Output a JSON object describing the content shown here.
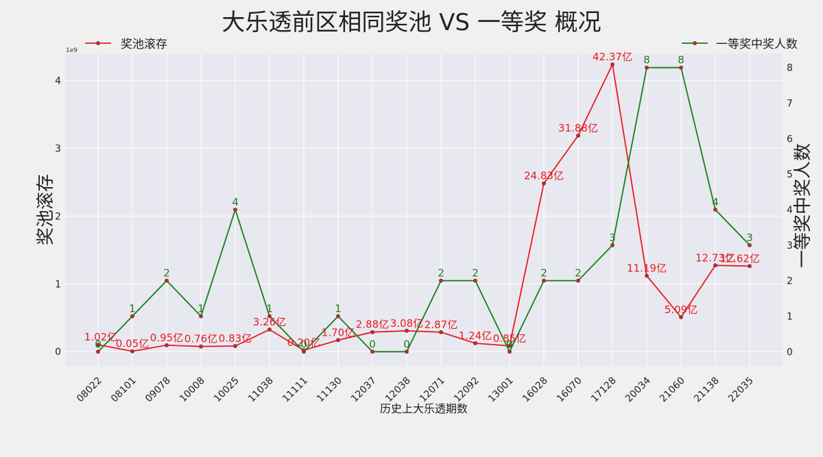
{
  "chart_data": {
    "type": "line",
    "title": "大乐透前区相同奖池 VS 一等奖 概况",
    "xlabel": "历史上大乐透期数",
    "ylabel_left": "奖池滚存",
    "ylabel_right": "一等奖中奖人数",
    "left_axis_offset_label": "1e9",
    "categories": [
      "08022",
      "08101",
      "09078",
      "10008",
      "10025",
      "11038",
      "11111",
      "11130",
      "12037",
      "12038",
      "12071",
      "12092",
      "13001",
      "16028",
      "16070",
      "17128",
      "20034",
      "21060",
      "21138",
      "22035"
    ],
    "y_left_ticks": [
      "0",
      "1",
      "2",
      "3",
      "4"
    ],
    "y_right_ticks": [
      "0",
      "1",
      "2",
      "3",
      "4",
      "5",
      "6",
      "7",
      "8"
    ],
    "ylim_left": [
      -0.21,
      4.4
    ],
    "ylim_right": [
      -0.4,
      8.4
    ],
    "grid": true,
    "legend_placement": "top-left and top-right",
    "series": [
      {
        "name": "奖池滚存",
        "axis": "left",
        "color": "#e8191f",
        "values": [
          0.102,
          0.005,
          0.095,
          0.076,
          0.083,
          0.326,
          0.02,
          0.17,
          0.288,
          0.308,
          0.287,
          0.124,
          0.085,
          2.483,
          3.188,
          4.237,
          1.119,
          0.509,
          1.273,
          1.262
        ],
        "labels": [
          "1.02亿",
          "0.05亿",
          "0.95亿",
          "0.76亿",
          "0.83亿",
          "3.26亿",
          "0.20亿",
          "1.70亿",
          "2.88亿",
          "3.08亿",
          "2.87亿",
          "1.24亿",
          "0.85亿",
          "24.83亿",
          "31.88亿",
          "42.37亿",
          "11.19亿",
          "5.09亿",
          "12.73亿",
          "12.62亿"
        ]
      },
      {
        "name": "一等奖中奖人数",
        "axis": "right",
        "color": "#138013",
        "values": [
          0,
          1,
          2,
          1,
          4,
          1,
          0,
          1,
          0,
          0,
          2,
          2,
          0,
          2,
          2,
          3,
          8,
          8,
          4,
          3
        ],
        "labels": [
          "0",
          "1",
          "2",
          "1",
          "4",
          "1",
          "0",
          "1",
          "0",
          "0",
          "2",
          "2",
          "0",
          "2",
          "2",
          "3",
          "8",
          "8",
          "4",
          "3"
        ]
      }
    ]
  }
}
